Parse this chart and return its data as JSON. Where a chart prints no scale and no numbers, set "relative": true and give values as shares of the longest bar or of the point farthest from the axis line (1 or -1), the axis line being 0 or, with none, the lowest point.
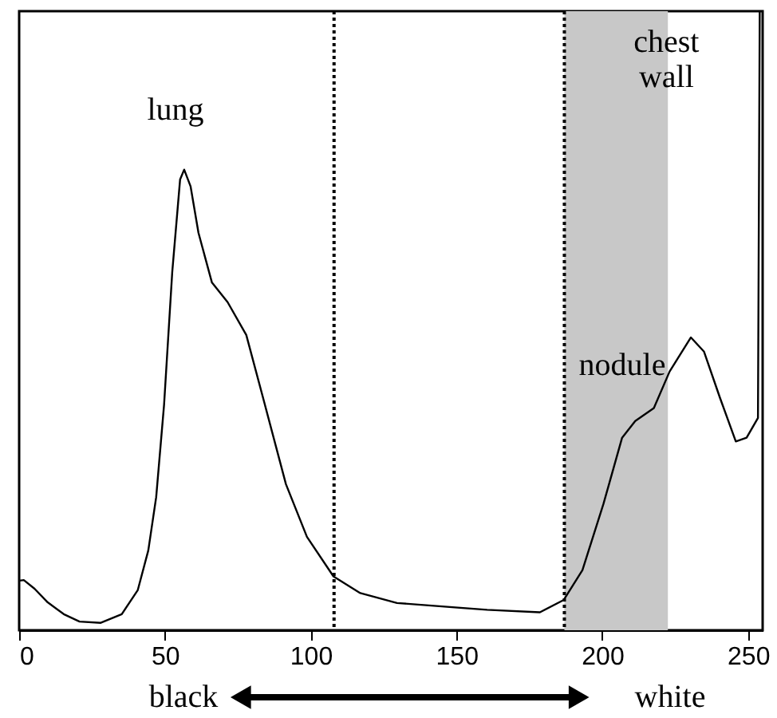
{
  "chart_data": {
    "type": "line",
    "relative": true,
    "x": [
      0,
      1.6,
      5.3,
      9.8,
      15.3,
      20.7,
      28,
      35.2,
      40.7,
      44.3,
      47,
      49.7,
      52.5,
      55.2,
      56.6,
      58.8,
      61.5,
      66.1,
      71.5,
      77.9,
      84.3,
      91.5,
      98.7,
      107.8,
      117,
      129.6,
      160.5,
      178.6,
      186.8,
      193.2,
      200.4,
      206.8,
      211.3,
      217.7,
      223.1,
      230.4,
      234.9,
      240.4,
      245.8,
      249.5,
      253.4,
      254
    ],
    "series": [
      {
        "color": "#000000",
        "values": [
          0.08,
          0.081,
          0.067,
          0.045,
          0.026,
          0.014,
          0.012,
          0.026,
          0.065,
          0.129,
          0.215,
          0.364,
          0.578,
          0.728,
          0.744,
          0.717,
          0.642,
          0.562,
          0.53,
          0.477,
          0.364,
          0.236,
          0.151,
          0.087,
          0.06,
          0.044,
          0.033,
          0.029,
          0.049,
          0.097,
          0.204,
          0.311,
          0.338,
          0.359,
          0.418,
          0.473,
          0.45,
          0.375,
          0.305,
          0.311,
          0.343,
          1.0
        ]
      }
    ],
    "xlim": [
      0,
      255
    ],
    "xticks": [
      0,
      50,
      100,
      150,
      200,
      250
    ],
    "ref_lines": [
      {
        "axis": "x",
        "value": 108,
        "line_style": "dotted",
        "color": "#000000"
      },
      {
        "axis": "x",
        "value": 187,
        "line_style": "dotted",
        "color": "#000000"
      }
    ],
    "bands": [
      {
        "axis": "x",
        "from": 187,
        "to": 222.5,
        "color": "#c8c8c8"
      }
    ],
    "annotations": [
      "lung",
      {
        "text": "chest\nwall",
        "x": 222,
        "y": 0.95
      },
      "nodule",
      "black",
      "white"
    ],
    "marker": "none",
    "line_style": "solid"
  }
}
